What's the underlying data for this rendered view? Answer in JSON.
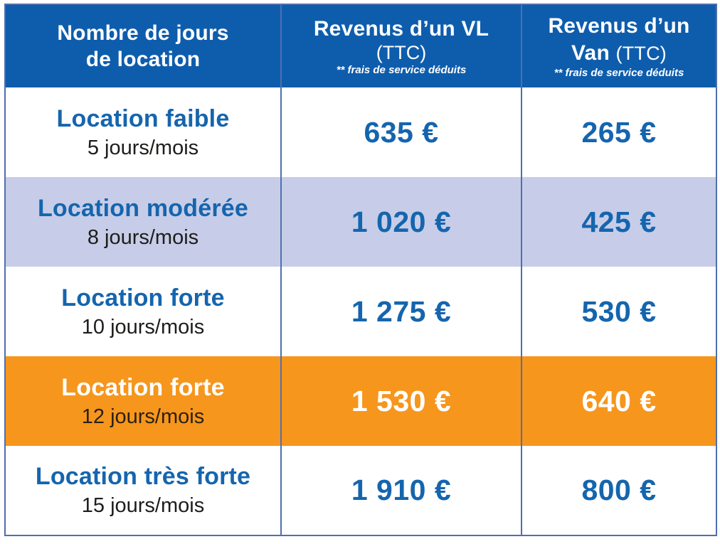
{
  "colors": {
    "header_bg": "#0e5dad",
    "header_text": "#ffffff",
    "row_alt_bg": "#c7cde8",
    "row_highlight_bg": "#f6961d",
    "text_blue": "#1565ae",
    "text_dark": "#1d1d1b",
    "border": "#4f6fae"
  },
  "header": {
    "days": {
      "line1": "Nombre de jours",
      "line2": "de location"
    },
    "vl": {
      "title": "Revenus d’un VL",
      "subtitle": "(TTC)",
      "note": "** frais de service déduits"
    },
    "van": {
      "line1": "Revenus d’un",
      "line2_bold": "Van",
      "line2_regular": "(TTC)",
      "note": "** frais de service déduits"
    }
  },
  "rows": [
    {
      "label": "Location faible",
      "days": "5 jours/mois",
      "vl": "635 €",
      "van": "265 €"
    },
    {
      "label": "Location modérée",
      "days": "8 jours/mois",
      "vl": "1 020 €",
      "van": "425 €"
    },
    {
      "label": "Location forte",
      "days": "10 jours/mois",
      "vl": "1 275 €",
      "van": "530 €"
    },
    {
      "label": "Location forte",
      "days": "12 jours/mois",
      "vl": "1 530 €",
      "van": "640 €"
    },
    {
      "label": "Location très forte",
      "days": "15 jours/mois",
      "vl": "1 910 €",
      "van": "800 €"
    }
  ],
  "chart_data": {
    "type": "table",
    "title": "Revenus de location par nombre de jours",
    "columns": [
      "Nombre de jours de location",
      "Revenus d’un VL (TTC) ** frais de service déduits",
      "Revenus d’un Van (TTC) ** frais de service déduits"
    ],
    "rows": [
      [
        "Location faible — 5 jours/mois",
        "635 €",
        "265 €"
      ],
      [
        "Location modérée — 8 jours/mois",
        "1 020 €",
        "425 €"
      ],
      [
        "Location forte — 10 jours/mois",
        "1 275 €",
        "530 €"
      ],
      [
        "Location forte — 12 jours/mois",
        "1 530 €",
        "640 €"
      ],
      [
        "Location très forte — 15 jours/mois",
        "1 910 €",
        "800 €"
      ]
    ],
    "highlighted_row_index": 3,
    "alternate_row_index": 1
  }
}
